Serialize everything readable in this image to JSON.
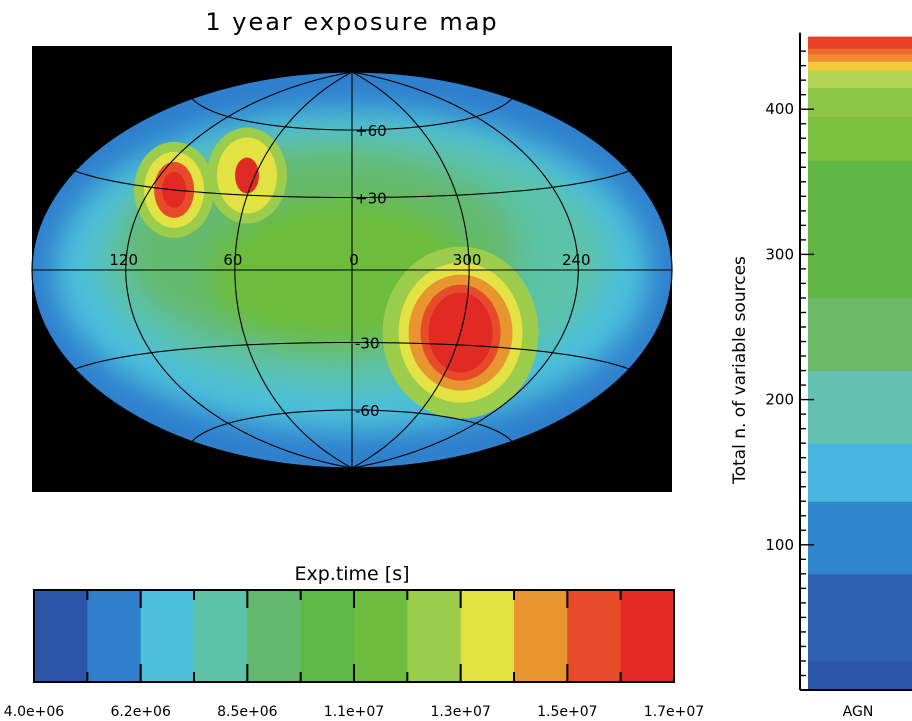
{
  "chart_data": [
    {
      "type": "heatmap",
      "title": "1 year exposure map",
      "projection": "hammer-aitoff",
      "background": "#000000",
      "grid": true,
      "longitude_labels": [
        "120",
        "60",
        "0",
        "300",
        "240"
      ],
      "latitude_labels": [
        "+60",
        "+30",
        "-30",
        "-60"
      ],
      "hotspots": [
        {
          "lon": 105,
          "lat": 30,
          "level": 15500000
        },
        {
          "lon": 65,
          "lat": 38,
          "level": 13500000
        },
        {
          "lon": 300,
          "lat": -25,
          "level": 16500000
        }
      ],
      "colorbar": {
        "label": "Exp.time [s]",
        "min": 4000000,
        "max": 17000000,
        "tick_labels": [
          "4.0e+06",
          "6.2e+06",
          "8.5e+06",
          "1.1e+07",
          "1.3e+07",
          "1.5e+07",
          "1.7e+07"
        ],
        "colors": [
          "#2c55a8",
          "#2f7fcd",
          "#4bbfdb",
          "#5cc2a8",
          "#63b96e",
          "#5db846",
          "#6cbc3e",
          "#9ccc4c",
          "#e2e342",
          "#e8952f",
          "#e84b2a",
          "#e22a25"
        ]
      }
    },
    {
      "type": "bar",
      "stacked": true,
      "ylabel": "Total n. of variable sources",
      "categories": [
        "AGN"
      ],
      "ylim": [
        0,
        450
      ],
      "yticks": [
        100,
        200,
        300,
        400
      ],
      "series": [
        {
          "values": [
            20
          ],
          "color": "#2c55a8"
        },
        {
          "values": [
            60
          ],
          "color": "#3060b0"
        },
        {
          "values": [
            50
          ],
          "color": "#3086cc"
        },
        {
          "values": [
            40
          ],
          "color": "#47b5df"
        },
        {
          "values": [
            50
          ],
          "color": "#62c1b0"
        },
        {
          "values": [
            50
          ],
          "color": "#6aba6a"
        },
        {
          "values": [
            95
          ],
          "color": "#5fb642"
        },
        {
          "values": [
            30
          ],
          "color": "#7cc040"
        },
        {
          "values": [
            20
          ],
          "color": "#8ec645"
        },
        {
          "values": [
            12
          ],
          "color": "#b4d453"
        },
        {
          "values": [
            6
          ],
          "color": "#f3c93a"
        },
        {
          "values": [
            5
          ],
          "color": "#f08c30"
        },
        {
          "values": [
            4
          ],
          "color": "#ee6a2c"
        },
        {
          "values": [
            8
          ],
          "color": "#e8412a"
        }
      ]
    }
  ]
}
